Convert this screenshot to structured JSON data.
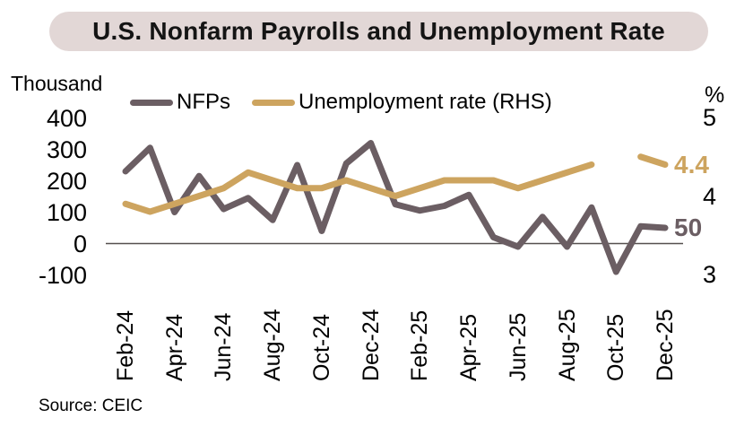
{
  "title": "U.S. Nonfarm Payrolls and Unemployment Rate",
  "source": "Source: CEIC",
  "colors": {
    "title_bg": "#e2d7d6",
    "nfps_line": "#6b5e63",
    "unemployment_line": "#cda45f",
    "zero_line": "#55504f",
    "text": "#000000"
  },
  "chart_data": {
    "type": "line",
    "title": "U.S. Nonfarm Payrolls and Unemployment Rate",
    "x": [
      "Feb-24",
      "Mar-24",
      "Apr-24",
      "May-24",
      "Jun-24",
      "Jul-24",
      "Aug-24",
      "Sep-24",
      "Oct-24",
      "Nov-24",
      "Dec-24",
      "Jan-25",
      "Feb-25",
      "Mar-25",
      "Apr-25",
      "May-25",
      "Jun-25",
      "Jul-25",
      "Aug-25",
      "Sep-25",
      "Oct-25",
      "Nov-25",
      "Dec-25"
    ],
    "x_tick_labels": [
      "Feb-24",
      "Apr-24",
      "Jun-24",
      "Aug-24",
      "Oct-24",
      "Dec-24",
      "Feb-25",
      "Apr-25",
      "Jun-25",
      "Aug-25",
      "Oct-25",
      "Dec-25"
    ],
    "left_axis": {
      "unit": "Thousand",
      "ticks": [
        400,
        300,
        200,
        100,
        0,
        -100
      ],
      "range": [
        -150,
        450
      ]
    },
    "right_axis": {
      "unit": "%",
      "ticks": [
        5,
        4,
        3
      ],
      "range": [
        3,
        5
      ]
    },
    "grid": false,
    "zero_line": true,
    "legend_position": "top",
    "series": [
      {
        "name": "NFPs",
        "axis": "left",
        "color": "#6b5e63",
        "end_label": "50",
        "values": [
          230,
          305,
          100,
          215,
          110,
          145,
          75,
          250,
          40,
          255,
          320,
          125,
          105,
          120,
          155,
          20,
          -10,
          85,
          -10,
          115,
          -90,
          55,
          50
        ]
      },
      {
        "name": "Unemployment rate (RHS)",
        "axis": "right",
        "color": "#cda45f",
        "end_label": "4.4",
        "values": [
          3.9,
          3.8,
          3.9,
          4.0,
          4.1,
          4.3,
          4.2,
          4.1,
          4.1,
          4.2,
          4.1,
          4.0,
          4.1,
          4.2,
          4.2,
          4.2,
          4.1,
          4.2,
          4.3,
          4.4,
          null,
          4.5,
          4.4
        ]
      }
    ]
  }
}
